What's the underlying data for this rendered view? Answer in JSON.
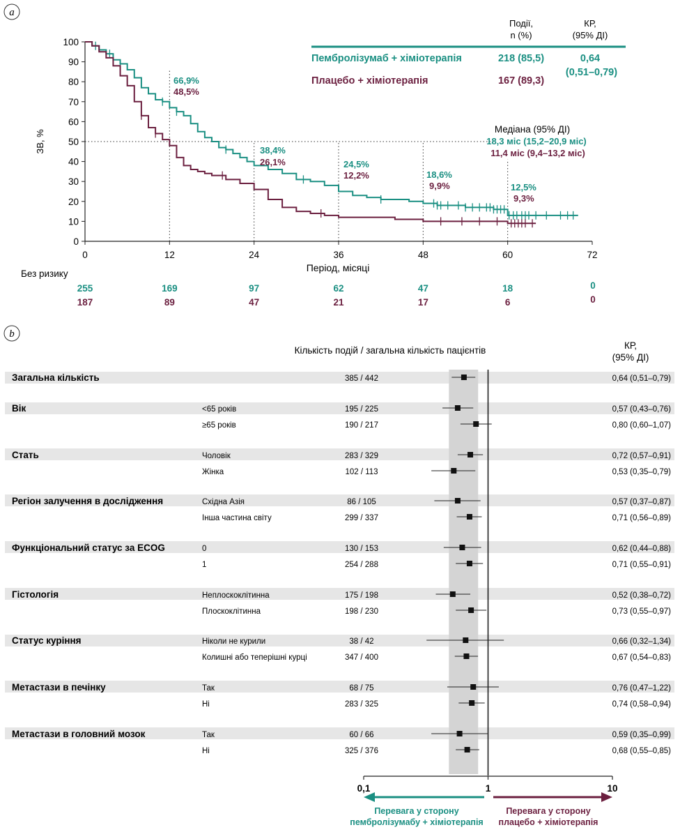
{
  "colors": {
    "teal": "#1a8f82",
    "maroon": "#6b1f3f",
    "band": "#e6e6e6",
    "ci_shade": "#d4d4d4"
  },
  "panel_a": {
    "label": "a",
    "ylabel": "ЗВ, %",
    "xlabel": "Період, місяці",
    "yticks": [
      "100",
      "90",
      "80",
      "70",
      "60",
      "50",
      "40",
      "30",
      "20",
      "10",
      "0"
    ],
    "xticks": [
      "0",
      "12",
      "24",
      "36",
      "48",
      "60",
      "72"
    ],
    "legend": {
      "col_events": "Події,",
      "col_events2": "n (%)",
      "col_hr": "КР,",
      "col_hr2": "(95% ДІ)",
      "row1_name": "Пембролізумаб + хіміотерапія",
      "row1_events": "218 (85,5)",
      "row1_hr": "0,64",
      "row1_ci": "(0,51–0,79)",
      "row2_name": "Плацебо + хіміотерапія",
      "row2_events": "167 (89,3)"
    },
    "median": {
      "title": "Медіана (95% ДІ)",
      "teal": "18,3 міс (15,2–20,9 міс)",
      "maroon": "11,4 міс (9,4–13,2 міс)"
    },
    "landmarks": [
      {
        "teal": "66,9%",
        "maroon": "48,5%"
      },
      {
        "teal": "38,4%",
        "maroon": "26,1%"
      },
      {
        "teal": "24,5%",
        "maroon": "12,2%"
      },
      {
        "teal": "18,6%",
        "maroon": "9,9%"
      },
      {
        "teal": "12,5%",
        "maroon": "9,3%"
      }
    ],
    "at_risk_title": "Без ризику",
    "at_risk_teal": [
      "255",
      "169",
      "97",
      "62",
      "47",
      "18",
      "0"
    ],
    "at_risk_maroon": [
      "187",
      "89",
      "47",
      "21",
      "17",
      "6",
      "0"
    ]
  },
  "chart_data": [
    {
      "type": "line",
      "title": "",
      "xlabel": "Період, місяці",
      "ylabel": "ЗВ, %",
      "xlim": [
        0,
        72
      ],
      "ylim": [
        0,
        100
      ],
      "series": [
        {
          "name": "Пембролізумаб + хіміотерапія",
          "x": [
            0,
            1,
            2,
            3,
            4,
            5,
            6,
            7,
            8,
            9,
            10,
            11,
            12,
            13,
            14,
            15,
            16,
            17,
            18,
            19,
            20,
            21,
            22,
            23,
            24,
            26,
            28,
            30,
            32,
            34,
            36,
            38,
            40,
            42,
            44,
            46,
            48,
            50,
            52,
            54,
            56,
            58,
            60,
            62,
            64,
            66,
            68,
            70
          ],
          "y": [
            100,
            98,
            96,
            94,
            91,
            89,
            86,
            82,
            77,
            74,
            71,
            70,
            67,
            65,
            63,
            59,
            55,
            52,
            50,
            47,
            46,
            44,
            42,
            40,
            38,
            36,
            34,
            31,
            30,
            28,
            25,
            23,
            22,
            21,
            21,
            20,
            19,
            18,
            18,
            17,
            17,
            16,
            13,
            13,
            13,
            13,
            13,
            13
          ]
        },
        {
          "name": "Плацебо + хіміотерапія",
          "x": [
            0,
            1,
            2,
            3,
            4,
            5,
            6,
            7,
            8,
            9,
            10,
            11,
            12,
            13,
            14,
            15,
            16,
            17,
            18,
            20,
            22,
            24,
            26,
            28,
            30,
            32,
            34,
            36,
            40,
            44,
            48,
            52,
            56,
            60,
            62,
            64
          ],
          "y": [
            100,
            98,
            95,
            92,
            88,
            83,
            78,
            70,
            63,
            57,
            54,
            51,
            48,
            42,
            38,
            36,
            35,
            34,
            33,
            31,
            29,
            26,
            21,
            17,
            15,
            14,
            13,
            12,
            12,
            11,
            10,
            10,
            10,
            9,
            9,
            9
          ]
        }
      ]
    },
    {
      "type": "table",
      "title": "",
      "xlabel": "",
      "x_scale": "log",
      "xlim": [
        0.1,
        10
      ],
      "xticks": [
        0.1,
        1,
        10
      ],
      "overall_hr": 0.64,
      "overall_ci": [
        0.51,
        0.79
      ],
      "rows": [
        {
          "hr": 0.64,
          "lo": 0.51,
          "hi": 0.79
        },
        {
          "hr": 0.57,
          "lo": 0.43,
          "hi": 0.76
        },
        {
          "hr": 0.8,
          "lo": 0.6,
          "hi": 1.07
        },
        {
          "hr": 0.72,
          "lo": 0.57,
          "hi": 0.91
        },
        {
          "hr": 0.53,
          "lo": 0.35,
          "hi": 0.79
        },
        {
          "hr": 0.57,
          "lo": 0.37,
          "hi": 0.87
        },
        {
          "hr": 0.71,
          "lo": 0.56,
          "hi": 0.89
        },
        {
          "hr": 0.62,
          "lo": 0.44,
          "hi": 0.88
        },
        {
          "hr": 0.71,
          "lo": 0.55,
          "hi": 0.91
        },
        {
          "hr": 0.52,
          "lo": 0.38,
          "hi": 0.72
        },
        {
          "hr": 0.73,
          "lo": 0.55,
          "hi": 0.97
        },
        {
          "hr": 0.66,
          "lo": 0.32,
          "hi": 1.34
        },
        {
          "hr": 0.67,
          "lo": 0.54,
          "hi": 0.83
        },
        {
          "hr": 0.76,
          "lo": 0.47,
          "hi": 1.22
        },
        {
          "hr": 0.74,
          "lo": 0.58,
          "hi": 0.94
        },
        {
          "hr": 0.59,
          "lo": 0.35,
          "hi": 0.99
        },
        {
          "hr": 0.68,
          "lo": 0.55,
          "hi": 0.85
        }
      ]
    }
  ],
  "panel_b": {
    "label": "b",
    "header_events": "Кількість подій / загальна кількість пацієнтів",
    "header_hr": "КР,",
    "header_hr2": "(95% ДІ)",
    "xticks": [
      "0,1",
      "1",
      "10"
    ],
    "favor_left1": "Перевага у сторону",
    "favor_left2": "пембролізумабу + хіміотерапія",
    "favor_right1": "Перевага у сторону",
    "favor_right2": "плацебо + хіміотерапія",
    "rows": [
      {
        "group": "Загальна кількість",
        "sub": "",
        "ev": "385 / 442",
        "hr": "0,64 (0,51–0,79)"
      },
      {
        "group": "Вік",
        "sub": "<65 років",
        "ev": "195 / 225",
        "hr": "0,57 (0,43–0,76)"
      },
      {
        "group": "",
        "sub": "≥65 років",
        "ev": "190 / 217",
        "hr": "0,80 (0,60–1,07)"
      },
      {
        "group": "Стать",
        "sub": "Чоловік",
        "ev": "283 / 329",
        "hr": "0,72 (0,57–0,91)"
      },
      {
        "group": "",
        "sub": "Жінка",
        "ev": "102 / 113",
        "hr": "0,53 (0,35–0,79)"
      },
      {
        "group": "Регіон залучення в дослідження",
        "sub": "Східна Азія",
        "ev": "86 / 105",
        "hr": "0,57 (0,37–0,87)"
      },
      {
        "group": "",
        "sub": "Інша частина світу",
        "ev": "299 / 337",
        "hr": "0,71 (0,56–0,89)"
      },
      {
        "group": "Функціональний статус за ECOG",
        "sub": "0",
        "ev": "130 / 153",
        "hr": "0,62 (0,44–0,88)"
      },
      {
        "group": "",
        "sub": "1",
        "ev": "254 / 288",
        "hr": "0,71 (0,55–0,91)"
      },
      {
        "group": "Гістологія",
        "sub": "Неплоскоклітинна",
        "ev": "175 / 198",
        "hr": "0,52 (0,38–0,72)"
      },
      {
        "group": "",
        "sub": "Плоскоклітинна",
        "ev": "198 / 230",
        "hr": "0,73 (0,55–0,97)"
      },
      {
        "group": "Статус куріння",
        "sub": "Ніколи не курили",
        "ev": "38 / 42",
        "hr": "0,66 (0,32–1,34)"
      },
      {
        "group": "",
        "sub": "Колишні або теперішні курці",
        "ev": "347 / 400",
        "hr": "0,67 (0,54–0,83)"
      },
      {
        "group": "Метастази в печінку",
        "sub": "Так",
        "ev": "68 / 75",
        "hr": "0,76 (0,47–1,22)"
      },
      {
        "group": "",
        "sub": "Ні",
        "ev": "283 / 325",
        "hr": "0,74 (0,58–0,94)"
      },
      {
        "group": "Метастази в головний мозок",
        "sub": "Так",
        "ev": "60 / 66",
        "hr": "0,59 (0,35–0,99)"
      },
      {
        "group": "",
        "sub": "Ні",
        "ev": "325 / 376",
        "hr": "0,68 (0,55–0,85)"
      }
    ]
  }
}
